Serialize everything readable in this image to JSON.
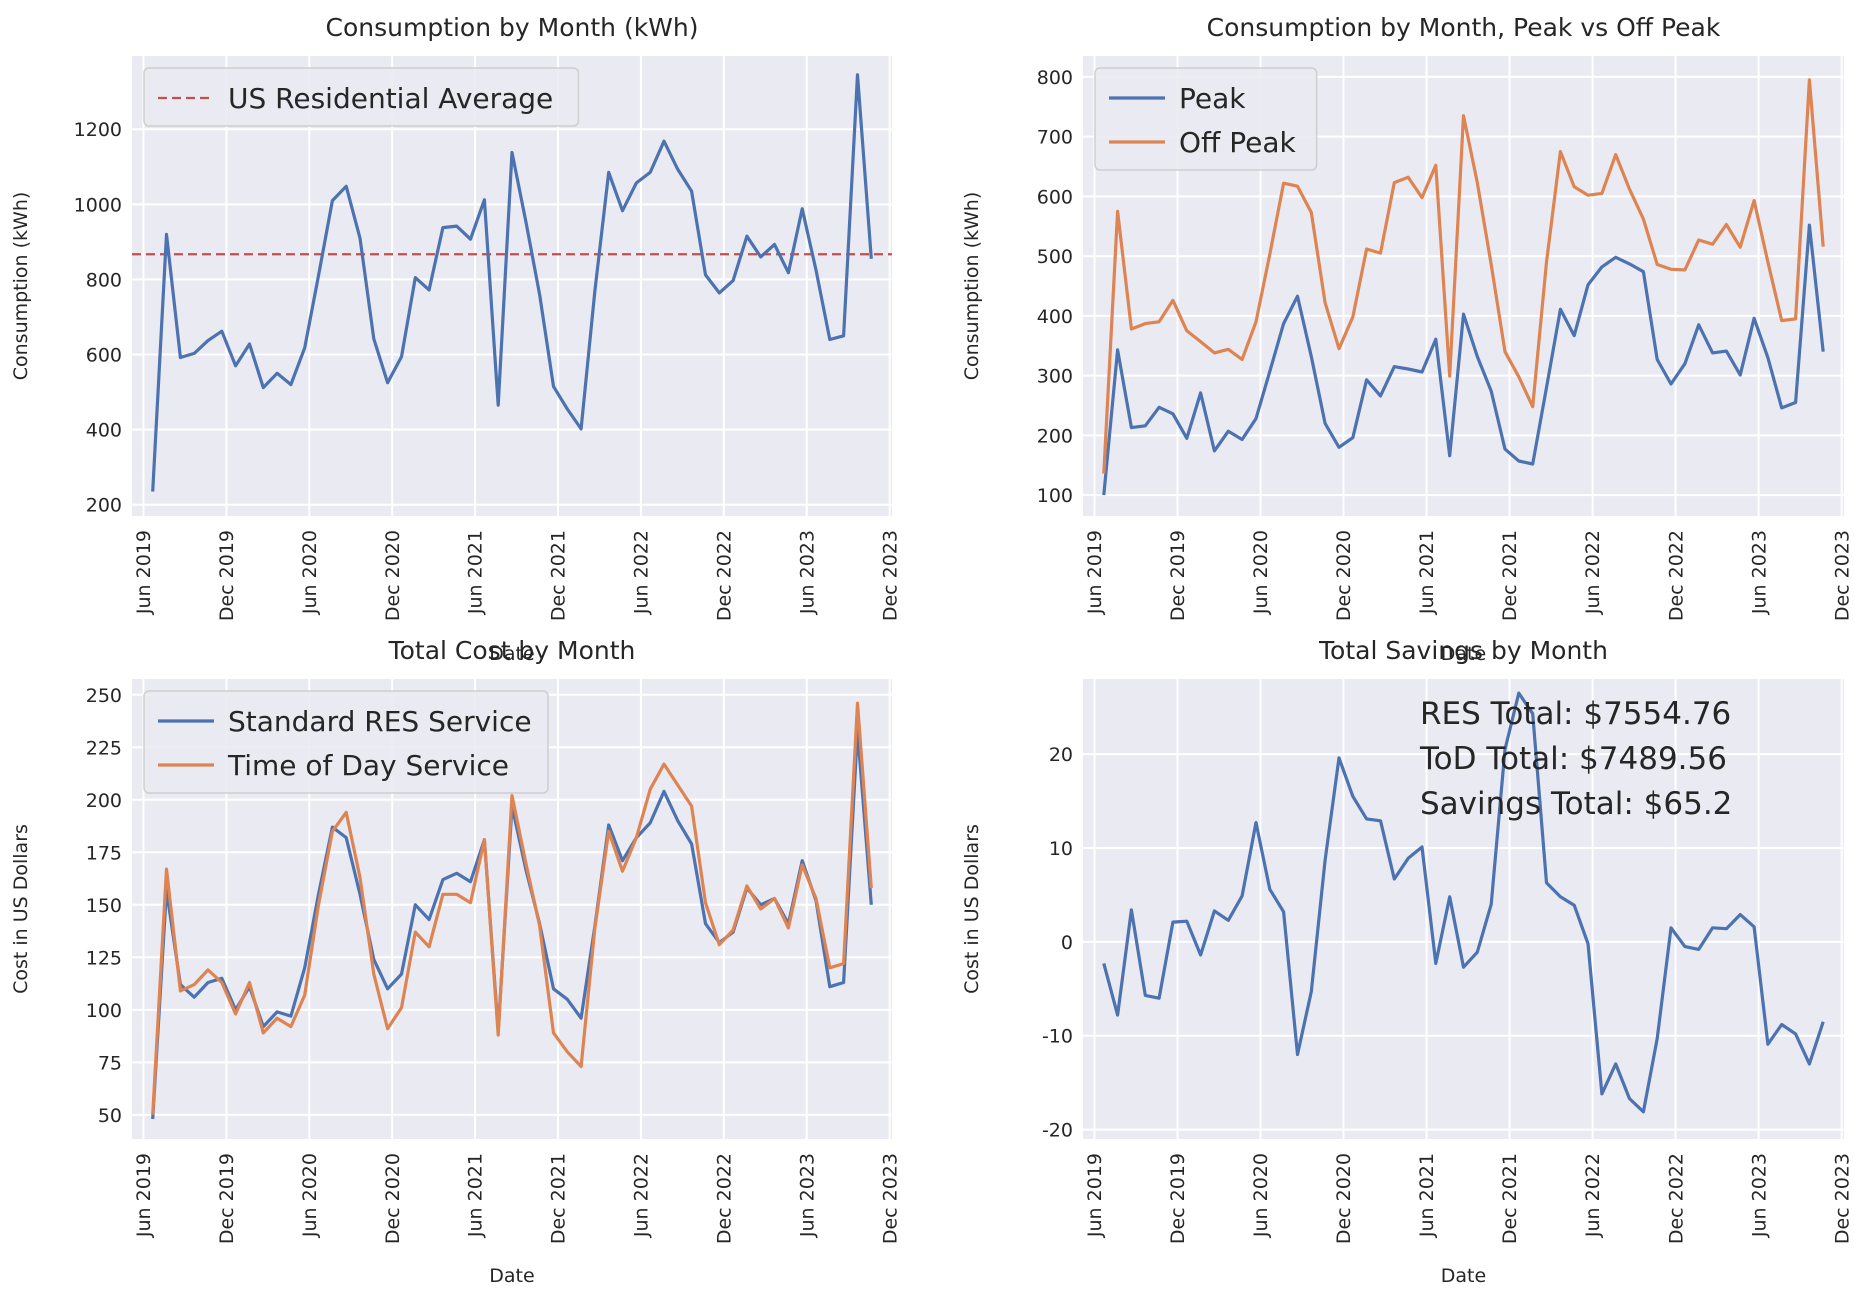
{
  "colors": {
    "blue": "#4c72b0",
    "orange": "#dd8452",
    "red": "#c44e52",
    "background": "#eaeaf2",
    "grid": "#ffffff"
  },
  "chart_data": [
    {
      "id": "consumption",
      "type": "line",
      "title": "Consumption by Month (kWh)",
      "xlabel": "Date",
      "ylabel": "Consumption (kWh)",
      "ylim": [
        170,
        1395
      ],
      "yticks": [
        200,
        400,
        600,
        800,
        1000,
        1200
      ],
      "legend": "top-left",
      "series": [
        {
          "name": "Consumption",
          "color": "#4c72b0",
          "values": [
            235,
            920,
            592,
            603,
            637,
            662,
            570,
            628,
            512,
            550,
            520,
            618,
            810,
            1010,
            1048,
            910,
            642,
            525,
            594,
            805,
            772,
            938,
            942,
            907,
            1012,
            465,
            1138,
            955,
            760,
            515,
            455,
            402,
            770,
            1085,
            983,
            1057,
            1085,
            1168,
            1093,
            1035,
            812,
            764,
            797,
            915,
            860,
            893,
            818,
            988,
            825,
            640,
            650,
            1345,
            855
          ]
        }
      ],
      "hlines": [
        {
          "name": "US Residential Average",
          "value": 867,
          "color": "#c44e52"
        }
      ]
    },
    {
      "id": "peak_offpeak",
      "type": "line",
      "title": "Consumption by Month, Peak vs Off Peak",
      "xlabel": "Date",
      "ylabel": "Consumption (kWh)",
      "ylim": [
        65,
        835
      ],
      "yticks": [
        100,
        200,
        300,
        400,
        500,
        600,
        700,
        800
      ],
      "legend": "top-left",
      "series": [
        {
          "name": "Peak",
          "color": "#4c72b0",
          "values": [
            100,
            343,
            213,
            216,
            247,
            236,
            195,
            271,
            174,
            207,
            193,
            228,
            307,
            387,
            433,
            332,
            220,
            180,
            196,
            293,
            266,
            315,
            311,
            306,
            361,
            166,
            403,
            332,
            274,
            177,
            157,
            152,
            280,
            411,
            367,
            452,
            482,
            498,
            487,
            474,
            327,
            286,
            320,
            385,
            338,
            341,
            301,
            396,
            330,
            246,
            255,
            552,
            340
          ]
        },
        {
          "name": "Off Peak",
          "color": "#dd8452",
          "values": [
            136,
            575,
            378,
            387,
            390,
            426,
            375,
            357,
            338,
            344,
            327,
            390,
            503,
            622,
            617,
            573,
            422,
            345,
            398,
            512,
            505,
            623,
            632,
            598,
            652,
            299,
            735,
            623,
            486,
            340,
            298,
            248,
            490,
            675,
            616,
            602,
            605,
            670,
            612,
            562,
            486,
            478,
            477,
            527,
            520,
            553,
            515,
            593,
            490,
            392,
            395,
            795,
            516
          ]
        }
      ]
    },
    {
      "id": "total_cost",
      "type": "line",
      "title": "Total Cost by Month",
      "xlabel": "Date",
      "ylabel": "Cost in US Dollars",
      "ylim": [
        38.5,
        257.5
      ],
      "yticks": [
        50,
        75,
        100,
        125,
        150,
        175,
        200,
        225,
        250
      ],
      "legend": "top-left",
      "series": [
        {
          "name": "Standard RES Service",
          "color": "#4c72b0",
          "values": [
            48,
            157,
            112,
            106,
            113,
            115,
            100,
            111,
            92,
            99,
            97,
            120,
            155,
            187,
            182,
            155,
            124,
            110,
            117,
            150,
            143,
            162,
            165,
            161,
            181,
            90,
            197,
            167,
            141,
            110,
            105,
            96,
            140,
            188,
            171,
            182,
            189,
            204,
            190,
            179,
            141,
            132,
            137,
            158,
            150,
            153,
            141,
            171,
            152,
            111,
            113,
            233,
            150
          ]
        },
        {
          "name": "Time of Day Service",
          "color": "#dd8452",
          "values": [
            50,
            167,
            109,
            112,
            119,
            113,
            98,
            113,
            89,
            96,
            92,
            107,
            150,
            185,
            194,
            163,
            117,
            91,
            101,
            137,
            130,
            155,
            155,
            151,
            181,
            88,
            202,
            170,
            140,
            89,
            80,
            73,
            139,
            185,
            166,
            182,
            205,
            217,
            207,
            197,
            151,
            131,
            138,
            159,
            148,
            153,
            139,
            169,
            153,
            120,
            122,
            246,
            158
          ]
        }
      ]
    },
    {
      "id": "total_savings",
      "type": "line",
      "title": "Total Savings by Month",
      "xlabel": "Date",
      "ylabel": "Cost in US Dollars",
      "ylim": [
        -21,
        28
      ],
      "yticks": [
        -20,
        -10,
        0,
        10,
        20
      ],
      "legend": "",
      "series": [
        {
          "name": "Savings",
          "color": "#4c72b0",
          "values": [
            -2.3,
            -7.8,
            3.4,
            -5.7,
            -6,
            2.1,
            2.2,
            -1.4,
            3.3,
            2.3,
            4.9,
            12.7,
            5.6,
            3.2,
            -12,
            -5.3,
            8.7,
            19.6,
            15.5,
            13.1,
            12.9,
            6.7,
            8.9,
            10.1,
            -2.3,
            4.8,
            -2.7,
            -1.1,
            4,
            20.5,
            26.5,
            24.3,
            6.3,
            4.8,
            3.9,
            -0.2,
            -16.2,
            -13,
            -16.7,
            -18.1,
            -10.3,
            1.5,
            -0.5,
            -0.8,
            1.5,
            1.4,
            2.9,
            1.6,
            -10.9,
            -8.8,
            -9.8,
            -13,
            -8.5
          ]
        }
      ],
      "annotations": [
        "RES Total: $7554.76",
        "ToD Total: $7489.56",
        "Savings Total: $65.2"
      ]
    }
  ],
  "x_axis": {
    "start": "Jul 2019",
    "points": 53,
    "range_months": [
      -1.5,
      53.5
    ],
    "ticks": [
      {
        "label": "Jun 2019",
        "month": -0.67
      },
      {
        "label": "Dec 2019",
        "month": 5.33
      },
      {
        "label": "Jun 2020",
        "month": 11.33
      },
      {
        "label": "Dec 2020",
        "month": 17.33
      },
      {
        "label": "Jun 2021",
        "month": 23.33
      },
      {
        "label": "Dec 2021",
        "month": 29.33
      },
      {
        "label": "Jun 2022",
        "month": 35.33
      },
      {
        "label": "Dec 2022",
        "month": 41.33
      },
      {
        "label": "Jun 2023",
        "month": 47.33
      },
      {
        "label": "Dec 2023",
        "month": 53.33
      }
    ]
  }
}
